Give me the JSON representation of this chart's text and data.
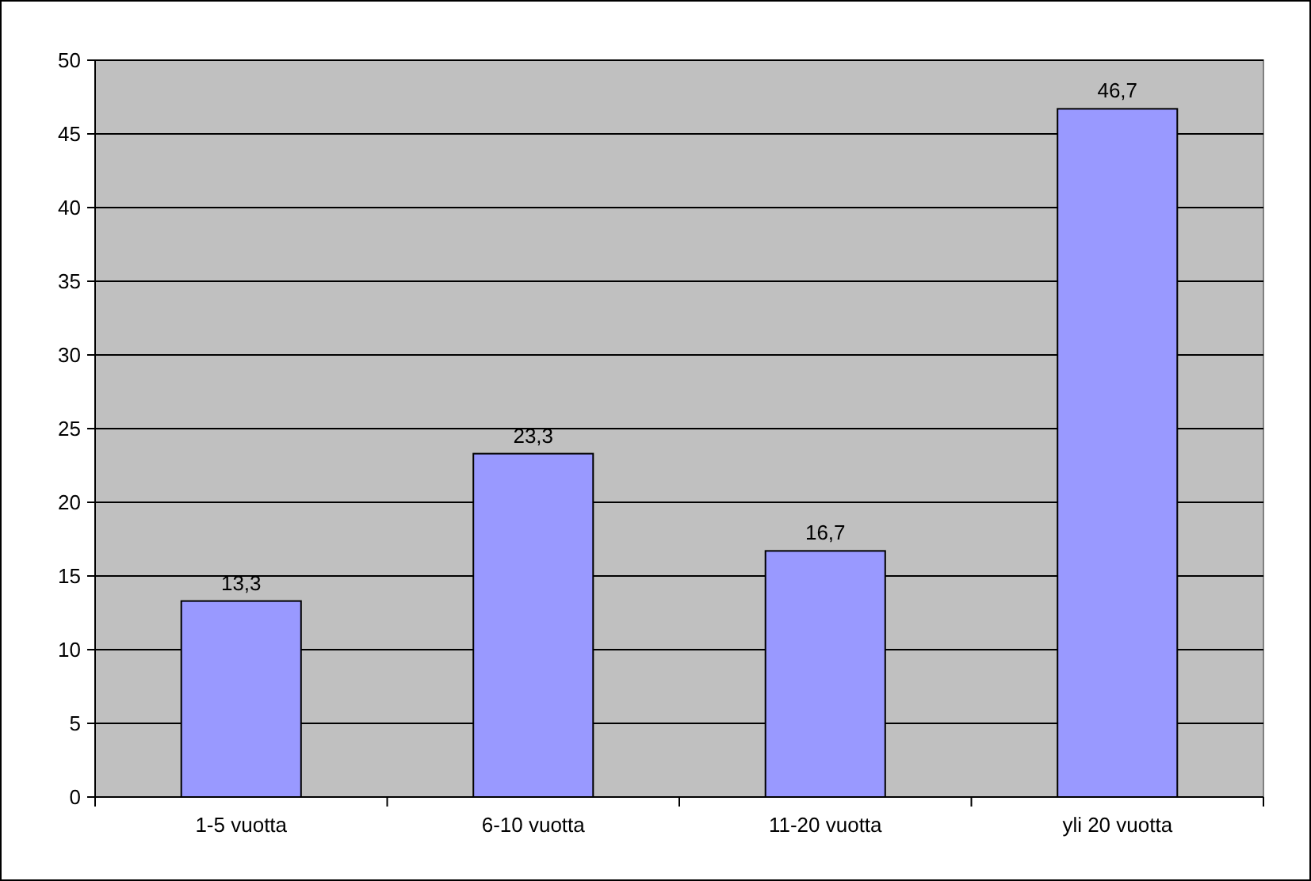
{
  "chart_data": {
    "type": "bar",
    "categories": [
      "1-5 vuotta",
      "6-10 vuotta",
      "11-20 vuotta",
      "yli 20 vuotta"
    ],
    "values": [
      13.3,
      23.3,
      16.7,
      46.7
    ],
    "value_labels": [
      "13,3",
      "23,3",
      "16,7",
      "46,7"
    ],
    "color": "#9999ff",
    "ylim": [
      0,
      50
    ],
    "yticks": [
      0,
      5,
      10,
      15,
      20,
      25,
      30,
      35,
      40,
      45,
      50
    ],
    "grid": "y"
  }
}
